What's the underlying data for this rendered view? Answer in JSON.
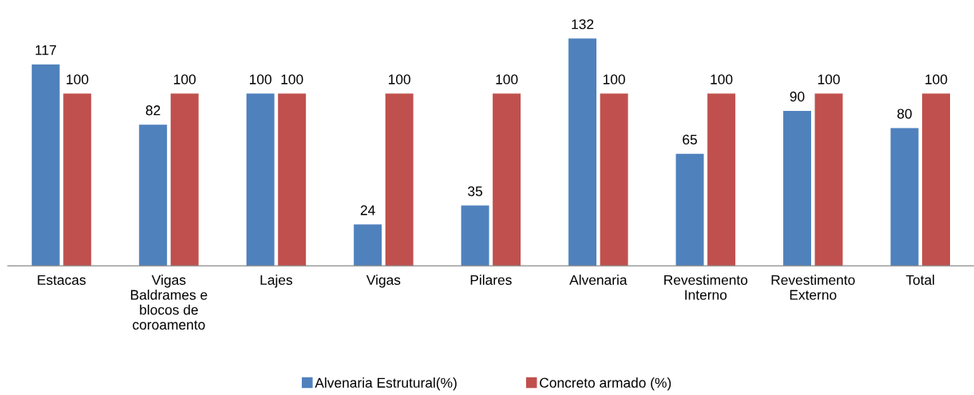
{
  "chart_data": {
    "type": "bar",
    "categories": [
      "Estacas",
      "Vigas\nBaldrames e\nblocos de\ncoroamento",
      "Lajes",
      "Vigas",
      "Pilares",
      "Alvenaria",
      "Revestimento\nInterno",
      "Revestimento\nExterno",
      "Total"
    ],
    "series": [
      {
        "name": "Alvenaria Estrutural(%)",
        "color": "#4f81bd",
        "values": [
          117,
          82,
          100,
          24,
          35,
          132,
          65,
          90,
          80
        ]
      },
      {
        "name": "Concreto armado (%)",
        "color": "#c0504d",
        "values": [
          100,
          100,
          100,
          100,
          100,
          100,
          100,
          100,
          100
        ]
      }
    ],
    "data_labels": true,
    "legend": "bottom",
    "grid": false
  }
}
